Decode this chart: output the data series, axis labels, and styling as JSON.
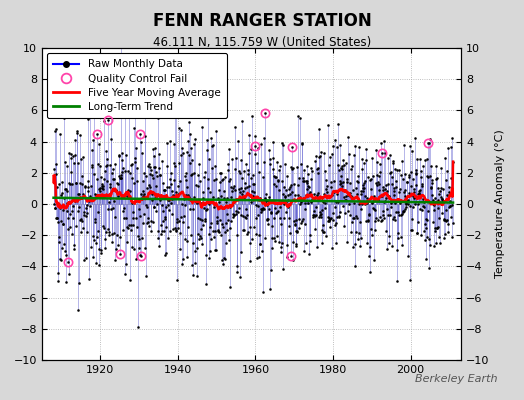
{
  "title": "FENN RANGER STATION",
  "subtitle": "46.111 N, 115.759 W (United States)",
  "ylabel": "Temperature Anomaly (°C)",
  "watermark": "Berkeley Earth",
  "ylim": [
    -10,
    10
  ],
  "xlim": [
    1905,
    2013
  ],
  "x_ticks": [
    1920,
    1940,
    1960,
    1980,
    2000
  ],
  "y_ticks": [
    -10,
    -8,
    -6,
    -4,
    -2,
    0,
    2,
    4,
    6,
    8,
    10
  ],
  "fig_bg_color": "#d8d8d8",
  "plot_bg_color": "#ffffff",
  "seed": 42,
  "start_year": 1908,
  "end_year": 2011,
  "trend_val": 0.3,
  "noise_early": 2.8,
  "noise_late": 1.6
}
